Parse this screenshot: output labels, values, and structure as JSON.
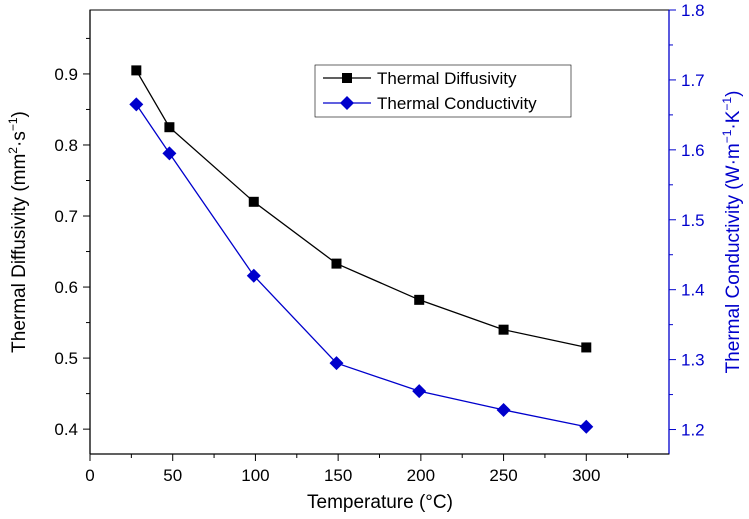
{
  "chart_data": {
    "type": "line",
    "xlabel": "Temperature (°C)",
    "x_ticks": [
      "0",
      "50",
      "100",
      "150",
      "200",
      "250",
      "300"
    ],
    "xlim": [
      0,
      350
    ],
    "y_left": {
      "label_main": "Thermal Diffusivity (mm",
      "label_sup1": "2",
      "label_mid": "·s",
      "label_sup2": "−1",
      "label_end": ")",
      "ticks": [
        "0.4",
        "0.5",
        "0.6",
        "0.7",
        "0.8",
        "0.9"
      ],
      "ylim": [
        0.365,
        0.99
      ]
    },
    "y_right": {
      "label_main": "Thermal Conductivity (W·m",
      "label_sup1": "−1",
      "label_mid": "·K",
      "label_sup2": "−1",
      "label_end": ")",
      "ticks": [
        "1.2",
        "1.3",
        "1.4",
        "1.5",
        "1.6",
        "1.7",
        "1.8"
      ],
      "ylim": [
        1.165,
        1.8
      ]
    },
    "series": [
      {
        "name": "Thermal Diffusivity",
        "axis": "left",
        "color": "#000000",
        "marker": "square",
        "x": [
          28,
          48,
          99,
          149,
          199,
          250,
          300
        ],
        "values": [
          0.905,
          0.825,
          0.72,
          0.633,
          0.582,
          0.54,
          0.515
        ]
      },
      {
        "name": "Thermal Conductivity",
        "axis": "right",
        "color": "#0000CC",
        "marker": "diamond",
        "x": [
          28,
          48,
          99,
          149,
          199,
          250,
          300
        ],
        "values": [
          1.665,
          1.595,
          1.42,
          1.295,
          1.255,
          1.228,
          1.204
        ]
      }
    ],
    "legend": "top-right",
    "grid": false
  }
}
